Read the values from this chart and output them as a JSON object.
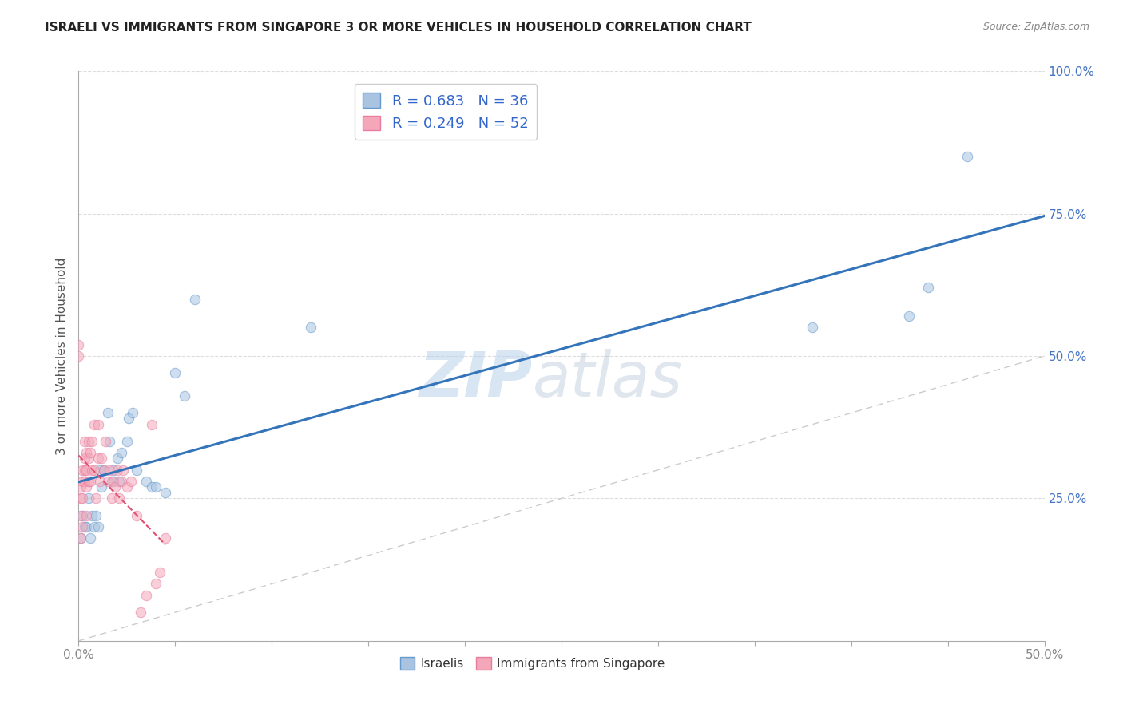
{
  "title": "ISRAELI VS IMMIGRANTS FROM SINGAPORE 3 OR MORE VEHICLES IN HOUSEHOLD CORRELATION CHART",
  "source": "Source: ZipAtlas.com",
  "ylabel": "3 or more Vehicles in Household",
  "xlim": [
    0.0,
    0.5
  ],
  "ylim": [
    0.0,
    1.0
  ],
  "xticks": [
    0.0,
    0.05,
    0.1,
    0.15,
    0.2,
    0.25,
    0.3,
    0.35,
    0.4,
    0.45,
    0.5
  ],
  "xticklabels_show": {
    "0.0": "0.0%",
    "0.5": "50.0%"
  },
  "yticks": [
    0.0,
    0.25,
    0.5,
    0.75,
    1.0
  ],
  "yticklabels": [
    "",
    "25.0%",
    "50.0%",
    "75.0%",
    "100.0%"
  ],
  "israeli_color": "#a8c4e0",
  "singapore_color": "#f4a7b9",
  "israeli_edge": "#6699cc",
  "singapore_edge": "#e87da0",
  "trendline_israeli_color": "#3474ba",
  "trendline_singapore_color": "#e05070",
  "diagonal_color": "#cccccc",
  "R_israeli": 0.683,
  "N_israeli": 36,
  "R_singapore": 0.249,
  "N_singapore": 52,
  "legend_label_israeli": "Israelis",
  "legend_label_singapore": "Immigrants from Singapore",
  "israeli_x": [
    0.001,
    0.002,
    0.003,
    0.004,
    0.005,
    0.006,
    0.007,
    0.008,
    0.009,
    0.01,
    0.011,
    0.012,
    0.013,
    0.015,
    0.016,
    0.017,
    0.018,
    0.02,
    0.021,
    0.022,
    0.025,
    0.026,
    0.028,
    0.03,
    0.035,
    0.038,
    0.04,
    0.045,
    0.05,
    0.055,
    0.06,
    0.12,
    0.38,
    0.43,
    0.44,
    0.46
  ],
  "israeli_y": [
    0.18,
    0.22,
    0.2,
    0.2,
    0.25,
    0.18,
    0.22,
    0.2,
    0.22,
    0.2,
    0.3,
    0.27,
    0.3,
    0.4,
    0.35,
    0.28,
    0.3,
    0.32,
    0.28,
    0.33,
    0.35,
    0.39,
    0.4,
    0.3,
    0.28,
    0.27,
    0.27,
    0.26,
    0.47,
    0.43,
    0.6,
    0.55,
    0.55,
    0.57,
    0.62,
    0.85
  ],
  "singapore_x": [
    0.0,
    0.0,
    0.001,
    0.001,
    0.001,
    0.001,
    0.002,
    0.002,
    0.002,
    0.002,
    0.003,
    0.003,
    0.003,
    0.003,
    0.004,
    0.004,
    0.004,
    0.004,
    0.005,
    0.005,
    0.005,
    0.006,
    0.006,
    0.007,
    0.007,
    0.008,
    0.008,
    0.009,
    0.01,
    0.01,
    0.011,
    0.012,
    0.013,
    0.014,
    0.015,
    0.016,
    0.017,
    0.018,
    0.019,
    0.02,
    0.021,
    0.022,
    0.023,
    0.025,
    0.027,
    0.03,
    0.032,
    0.035,
    0.038,
    0.04,
    0.042,
    0.045
  ],
  "singapore_y": [
    0.5,
    0.52,
    0.18,
    0.22,
    0.25,
    0.27,
    0.2,
    0.25,
    0.28,
    0.3,
    0.28,
    0.3,
    0.32,
    0.35,
    0.22,
    0.27,
    0.3,
    0.33,
    0.28,
    0.32,
    0.35,
    0.28,
    0.33,
    0.3,
    0.35,
    0.3,
    0.38,
    0.25,
    0.32,
    0.38,
    0.28,
    0.32,
    0.3,
    0.35,
    0.28,
    0.3,
    0.25,
    0.28,
    0.27,
    0.3,
    0.25,
    0.28,
    0.3,
    0.27,
    0.28,
    0.22,
    0.05,
    0.08,
    0.38,
    0.1,
    0.12,
    0.18
  ],
  "watermark_zip": "ZIP",
  "watermark_atlas": "atlas",
  "marker_size": 80,
  "alpha": 0.55,
  "grid_color": "#dddddd",
  "background_color": "#ffffff"
}
